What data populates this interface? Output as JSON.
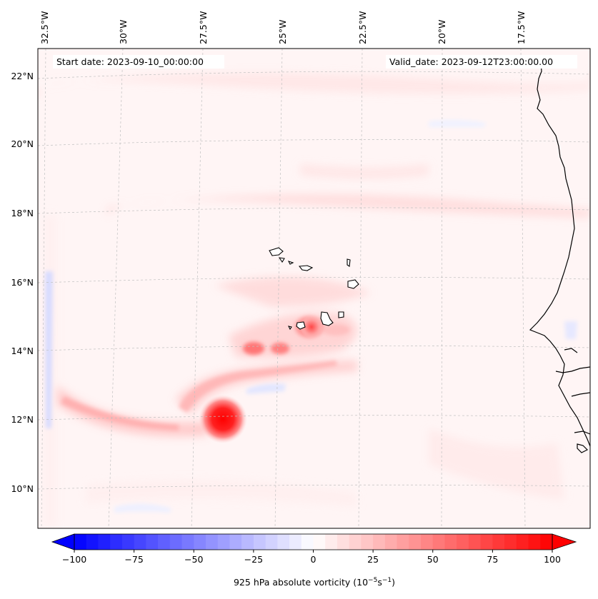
{
  "map": {
    "start_date": "Start date: 2023-09-10_00:00:00",
    "valid_date": "Valid_date: 2023-09-12T23:00:00.00",
    "lon_labels": [
      "32.5°W",
      "30°W",
      "27.5°W",
      "25°W",
      "22.5°W",
      "20°W",
      "17.5°W"
    ],
    "lat_labels": [
      "22°N",
      "20°N",
      "18°N",
      "16°N",
      "14°N",
      "12°N",
      "10°N"
    ],
    "colors": {
      "positive": "#ff0000",
      "negative": "#0000ff",
      "neutral": "#ffffff",
      "coast": "#000000"
    }
  },
  "colorbar": {
    "label": "925 hPa absolute vorticity (10",
    "label_exp1": "−5",
    "label_mid": "s",
    "label_exp2": "−1",
    "label_end": ")",
    "range": [
      -100,
      100
    ],
    "step": 5,
    "ticks": [
      "−100",
      "−75",
      "−50",
      "−25",
      "0",
      "25",
      "50",
      "75",
      "100"
    ]
  }
}
